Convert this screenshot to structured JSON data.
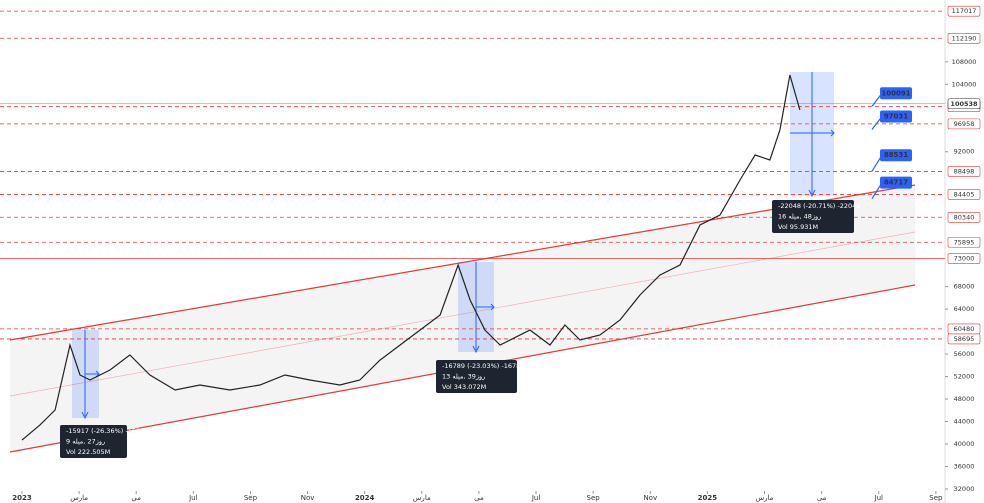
{
  "chart_data": {
    "type": "line",
    "series": [
      {
        "color": "#222222",
        "x": [
          0,
          0.63,
          1.16,
          1.68,
          2.03,
          2.38,
          3.08,
          3.78,
          4.48,
          5.36,
          6.23,
          7.28,
          8.33,
          9.21,
          10.08,
          11.13,
          11.83,
          12.54,
          13.24,
          13.94,
          14.64,
          15.27,
          15.69,
          16.21,
          16.74,
          17.79,
          18.49,
          19.01,
          19.54,
          20.24,
          20.94,
          21.64,
          22.34,
          23.04,
          23.74,
          24.44,
          25.14,
          25.67,
          26.19,
          26.54,
          26.89,
          27.24
        ],
        "values": [
          40700,
          43400,
          46050,
          57620,
          52280,
          51390,
          53170,
          55840,
          52280,
          49610,
          50500,
          49610,
          50500,
          52280,
          51390,
          50500,
          51390,
          54950,
          57620,
          60290,
          62950,
          71850,
          65620,
          60290,
          57620,
          60290,
          57620,
          61180,
          58510,
          59400,
          62070,
          66510,
          70070,
          71850,
          78970,
          80750,
          86970,
          91420,
          90530,
          95870,
          105650,
          99430
        ]
      }
    ],
    "xlim": [
      -0.77,
      32.32
    ],
    "xticks": [
      {
        "value": 0,
        "label": "2023"
      },
      {
        "value": 2,
        "label": "مارس"
      },
      {
        "value": 4,
        "label": "می"
      },
      {
        "value": 6,
        "label": "Jul"
      },
      {
        "value": 8,
        "label": "Sep"
      },
      {
        "value": 10,
        "label": "Nov"
      },
      {
        "value": 12,
        "label": "2024"
      },
      {
        "value": 14,
        "label": "مارس"
      },
      {
        "value": 16,
        "label": "می"
      },
      {
        "value": 18,
        "label": "Jul"
      },
      {
        "value": 20,
        "label": "Sep"
      },
      {
        "value": 22,
        "label": "Nov"
      },
      {
        "value": 24,
        "label": "2025"
      },
      {
        "value": 26,
        "label": "مارس"
      },
      {
        "value": 28,
        "label": "می"
      },
      {
        "value": 30,
        "label": "Jul"
      },
      {
        "value": 32,
        "label": "Sep"
      }
    ],
    "ylim": [
      29500,
      119000
    ],
    "yticks": [
      32000,
      36000,
      40000,
      44000,
      48000,
      52000,
      56000,
      64000,
      68000,
      92000,
      104000,
      108000
    ],
    "grid": false,
    "levels": [
      {
        "value": 117017,
        "style": "dashed"
      },
      {
        "value": 112190,
        "style": "dashed"
      },
      {
        "value": 100015,
        "style": "dashed"
      },
      {
        "value": 96958,
        "style": "dashed"
      },
      {
        "value": 88498,
        "style": "dashed"
      },
      {
        "value": 84405,
        "style": "dashed"
      },
      {
        "value": 80340,
        "style": "dashed"
      },
      {
        "value": 75895,
        "style": "dashed"
      },
      {
        "value": 73000,
        "style": "solid"
      },
      {
        "value": 60480,
        "style": "dashed"
      },
      {
        "value": 58695,
        "style": "dashed"
      }
    ],
    "level_color": "#e53935",
    "current_price": 100538,
    "callouts": [
      100091,
      97031,
      88531,
      84717
    ],
    "callout_color": "#2962ff",
    "measurements": [
      {
        "change": "-15917 (-26.36%) -15917",
        "bars": "روز27 ,میله 9",
        "volume": "Vol 222.505M"
      },
      {
        "change": "-16789 (-23.03%) -16789",
        "bars": "روز39 ,میله 13",
        "volume": "Vol 343.072M"
      },
      {
        "change": "-22048 (-20.71%) -22048",
        "bars": "روز48 ,میله 16",
        "volume": "Vol 95.931M"
      }
    ]
  }
}
